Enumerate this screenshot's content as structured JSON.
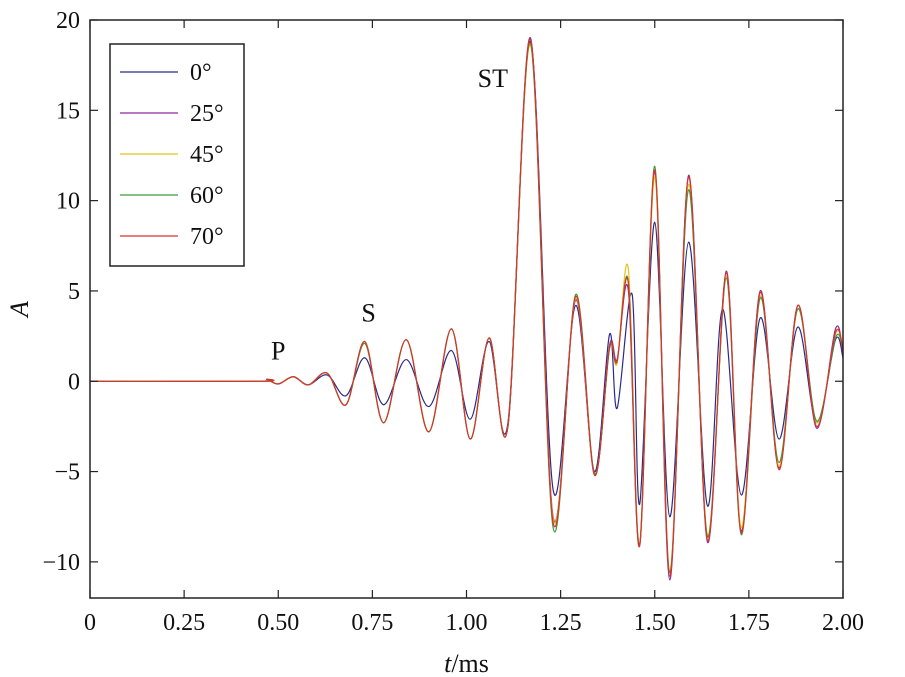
{
  "chart_data": {
    "type": "line",
    "title": "",
    "xlabel_italic": "t",
    "xlabel_unit": "/ms",
    "ylabel": "A",
    "xlim": [
      0,
      2.0
    ],
    "ylim": [
      -12,
      20
    ],
    "xticks": [
      0,
      0.25,
      0.5,
      0.75,
      1.0,
      1.25,
      1.5,
      1.75,
      2.0
    ],
    "xtick_labels": [
      "0",
      "0.25",
      "0.50",
      "0.75",
      "1.00",
      "1.25",
      "1.50",
      "1.75",
      "2.00"
    ],
    "yticks": [
      -10,
      -5,
      0,
      5,
      10,
      15,
      20
    ],
    "ytick_labels": [
      "−10",
      "−5",
      "0",
      "5",
      "10",
      "15",
      "20"
    ],
    "grid": false,
    "legend_position": "top-left",
    "annotations": [
      {
        "text": "P",
        "x": 0.5,
        "y": 1.2
      },
      {
        "text": "S",
        "x": 0.74,
        "y": 3.3
      },
      {
        "text": "ST",
        "x": 1.07,
        "y": 16.3
      }
    ],
    "series": [
      {
        "name": "0°",
        "color": "#2a2a8a",
        "points": [
          [
            0,
            0
          ],
          [
            0.45,
            0
          ],
          [
            0.47,
            0.1
          ],
          [
            0.5,
            -0.15
          ],
          [
            0.54,
            0.25
          ],
          [
            0.58,
            -0.2
          ],
          [
            0.63,
            0.35
          ],
          [
            0.68,
            -0.8
          ],
          [
            0.73,
            1.3
          ],
          [
            0.78,
            -1.3
          ],
          [
            0.84,
            1.2
          ],
          [
            0.9,
            -1.4
          ],
          [
            0.96,
            1.7
          ],
          [
            1.01,
            -2.1
          ],
          [
            1.06,
            2.2
          ],
          [
            1.11,
            -2.3
          ],
          [
            1.17,
            18.8
          ],
          [
            1.23,
            -6.0
          ],
          [
            1.29,
            4.2
          ],
          [
            1.34,
            -5.0
          ],
          [
            1.38,
            2.6
          ],
          [
            1.4,
            -1.5
          ],
          [
            1.44,
            4.8
          ],
          [
            1.46,
            -6.8
          ],
          [
            1.5,
            8.8
          ],
          [
            1.54,
            -7.5
          ],
          [
            1.59,
            7.7
          ],
          [
            1.64,
            -6.9
          ],
          [
            1.68,
            4.0
          ],
          [
            1.73,
            -6.3
          ],
          [
            1.78,
            3.5
          ],
          [
            1.83,
            -3.2
          ],
          [
            1.88,
            3.0
          ],
          [
            1.93,
            -2.3
          ],
          [
            1.98,
            2.3
          ],
          [
            2.0,
            1.3
          ]
        ]
      },
      {
        "name": "25°",
        "color": "#8b2a9c",
        "points": [
          [
            0,
            0
          ],
          [
            0.45,
            0
          ],
          [
            0.47,
            0.1
          ],
          [
            0.5,
            -0.15
          ],
          [
            0.54,
            0.25
          ],
          [
            0.58,
            -0.2
          ],
          [
            0.63,
            0.45
          ],
          [
            0.68,
            -1.3
          ],
          [
            0.73,
            2.1
          ],
          [
            0.78,
            -2.3
          ],
          [
            0.84,
            2.3
          ],
          [
            0.9,
            -2.8
          ],
          [
            0.96,
            2.9
          ],
          [
            1.01,
            -3.2
          ],
          [
            1.06,
            2.4
          ],
          [
            1.11,
            -2.5
          ],
          [
            1.17,
            19.0
          ],
          [
            1.23,
            -7.5
          ],
          [
            1.29,
            4.5
          ],
          [
            1.34,
            -5.2
          ],
          [
            1.38,
            2.0
          ],
          [
            1.4,
            1.2
          ],
          [
            1.43,
            5.0
          ],
          [
            1.46,
            -9.1
          ],
          [
            1.5,
            11.6
          ],
          [
            1.54,
            -11.0
          ],
          [
            1.59,
            11.4
          ],
          [
            1.64,
            -8.9
          ],
          [
            1.69,
            6.1
          ],
          [
            1.73,
            -8.3
          ],
          [
            1.78,
            5.0
          ],
          [
            1.83,
            -4.8
          ],
          [
            1.88,
            4.2
          ],
          [
            1.93,
            -2.6
          ],
          [
            1.98,
            2.9
          ],
          [
            2.0,
            1.6
          ]
        ]
      },
      {
        "name": "45°",
        "color": "#e8c21a",
        "points": [
          [
            0,
            0
          ],
          [
            0.45,
            0
          ],
          [
            0.47,
            0.1
          ],
          [
            0.5,
            -0.15
          ],
          [
            0.54,
            0.25
          ],
          [
            0.58,
            -0.2
          ],
          [
            0.63,
            0.45
          ],
          [
            0.68,
            -1.3
          ],
          [
            0.73,
            2.1
          ],
          [
            0.78,
            -2.3
          ],
          [
            0.84,
            2.3
          ],
          [
            0.9,
            -2.8
          ],
          [
            0.96,
            2.9
          ],
          [
            1.01,
            -3.2
          ],
          [
            1.06,
            2.4
          ],
          [
            1.11,
            -2.5
          ],
          [
            1.17,
            18.6
          ],
          [
            1.23,
            -7.6
          ],
          [
            1.29,
            4.6
          ],
          [
            1.34,
            -5.2
          ],
          [
            1.38,
            1.9
          ],
          [
            1.4,
            1.0
          ],
          [
            1.43,
            6.2
          ],
          [
            1.46,
            -9.0
          ],
          [
            1.5,
            11.3
          ],
          [
            1.54,
            -10.5
          ],
          [
            1.59,
            10.9
          ],
          [
            1.64,
            -8.5
          ],
          [
            1.69,
            5.8
          ],
          [
            1.73,
            -8.1
          ],
          [
            1.78,
            4.7
          ],
          [
            1.83,
            -4.7
          ],
          [
            1.88,
            4.0
          ],
          [
            1.93,
            -2.3
          ],
          [
            1.98,
            2.6
          ],
          [
            2.0,
            1.9
          ]
        ]
      },
      {
        "name": "60°",
        "color": "#3f9a3a",
        "points": [
          [
            0,
            0
          ],
          [
            0.45,
            0
          ],
          [
            0.47,
            0.1
          ],
          [
            0.5,
            -0.15
          ],
          [
            0.54,
            0.25
          ],
          [
            0.58,
            -0.2
          ],
          [
            0.63,
            0.45
          ],
          [
            0.68,
            -1.3
          ],
          [
            0.73,
            2.1
          ],
          [
            0.78,
            -2.3
          ],
          [
            0.84,
            2.3
          ],
          [
            0.9,
            -2.8
          ],
          [
            0.96,
            2.9
          ],
          [
            1.01,
            -3.2
          ],
          [
            1.06,
            2.4
          ],
          [
            1.11,
            -2.5
          ],
          [
            1.17,
            18.7
          ],
          [
            1.23,
            -8.1
          ],
          [
            1.29,
            4.8
          ],
          [
            1.34,
            -5.1
          ],
          [
            1.38,
            1.8
          ],
          [
            1.4,
            1.1
          ],
          [
            1.43,
            5.5
          ],
          [
            1.46,
            -9.0
          ],
          [
            1.5,
            11.9
          ],
          [
            1.54,
            -10.6
          ],
          [
            1.59,
            10.6
          ],
          [
            1.64,
            -8.6
          ],
          [
            1.69,
            5.7
          ],
          [
            1.73,
            -8.5
          ],
          [
            1.78,
            4.6
          ],
          [
            1.83,
            -4.5
          ],
          [
            1.88,
            4.0
          ],
          [
            1.93,
            -2.2
          ],
          [
            1.98,
            2.4
          ],
          [
            2.0,
            1.8
          ]
        ]
      },
      {
        "name": "70°",
        "color": "#d9342b",
        "points": [
          [
            0,
            0
          ],
          [
            0.45,
            0
          ],
          [
            0.47,
            0.1
          ],
          [
            0.5,
            -0.15
          ],
          [
            0.54,
            0.25
          ],
          [
            0.58,
            -0.2
          ],
          [
            0.63,
            0.45
          ],
          [
            0.68,
            -1.3
          ],
          [
            0.73,
            2.2
          ],
          [
            0.78,
            -2.3
          ],
          [
            0.84,
            2.3
          ],
          [
            0.9,
            -2.8
          ],
          [
            0.96,
            2.9
          ],
          [
            1.01,
            -3.2
          ],
          [
            1.06,
            2.4
          ],
          [
            1.11,
            -2.5
          ],
          [
            1.17,
            18.9
          ],
          [
            1.23,
            -7.8
          ],
          [
            1.29,
            4.7
          ],
          [
            1.34,
            -5.2
          ],
          [
            1.38,
            1.9
          ],
          [
            1.4,
            1.1
          ],
          [
            1.43,
            5.4
          ],
          [
            1.46,
            -9.1
          ],
          [
            1.5,
            11.7
          ],
          [
            1.54,
            -10.8
          ],
          [
            1.59,
            11.3
          ],
          [
            1.64,
            -8.8
          ],
          [
            1.69,
            6.0
          ],
          [
            1.73,
            -8.4
          ],
          [
            1.78,
            4.9
          ],
          [
            1.83,
            -4.9
          ],
          [
            1.88,
            4.2
          ],
          [
            1.93,
            -2.5
          ],
          [
            1.98,
            2.7
          ],
          [
            2.0,
            1.7
          ]
        ]
      }
    ]
  }
}
